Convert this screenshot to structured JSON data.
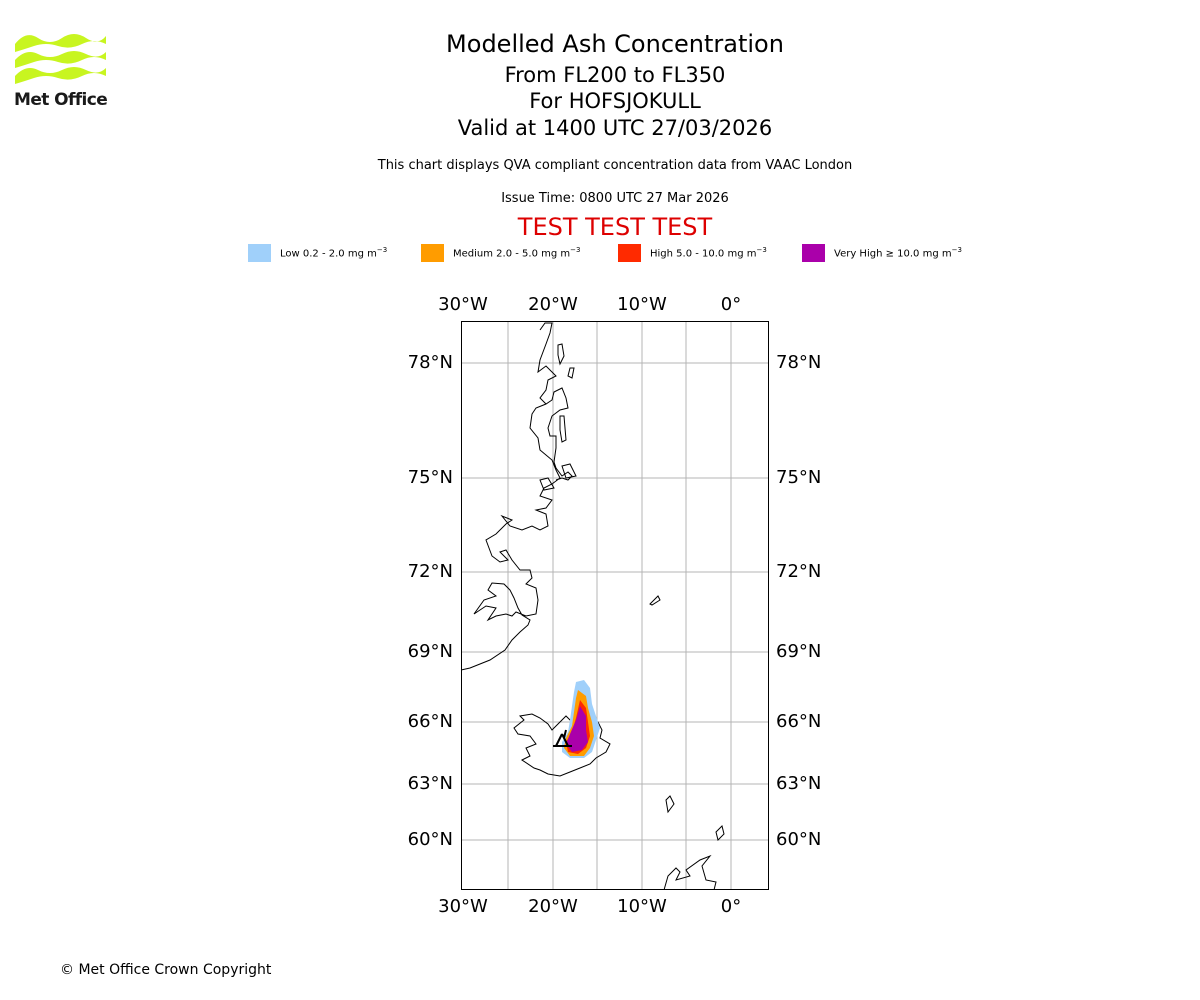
{
  "brand": {
    "name": "Met Office",
    "logo_color": "#c8f520",
    "text_color": "#1a1a1a"
  },
  "header": {
    "title": "Modelled Ash Concentration",
    "flight_levels": "From FL200 to FL350",
    "volcano": "For HOFSJOKULL",
    "valid_time": "Valid at 1400 UTC 27/03/2026",
    "description": "This chart displays QVA compliant concentration data from VAAC London",
    "issue_time": "Issue Time: 0800 UTC 27 Mar 2026",
    "test_banner": "TEST TEST TEST",
    "test_color": "#dd0000"
  },
  "legend": {
    "unit_base": "mg m",
    "unit_exp": "−3",
    "items": [
      {
        "label": "Low 0.2 - 2.0",
        "color": "#a0d0fa"
      },
      {
        "label": "Medium 2.0 - 5.0",
        "color": "#ff9c00"
      },
      {
        "label": "High 5.0 - 10.0",
        "color": "#ff2a00"
      },
      {
        "label": "Very High  ≥  10.0",
        "color": "#aa00aa"
      }
    ]
  },
  "map": {
    "longitude_labels": [
      "30°W",
      "20°W",
      "10°W",
      "0°"
    ],
    "latitude_labels": [
      "78°N",
      "75°N",
      "72°N",
      "69°N",
      "66°N",
      "63°N",
      "60°N"
    ],
    "grid_color": "#b4b4b4",
    "coast_color": "#000000"
  },
  "footer": {
    "copyright": "© Met Office Crown Copyright"
  }
}
